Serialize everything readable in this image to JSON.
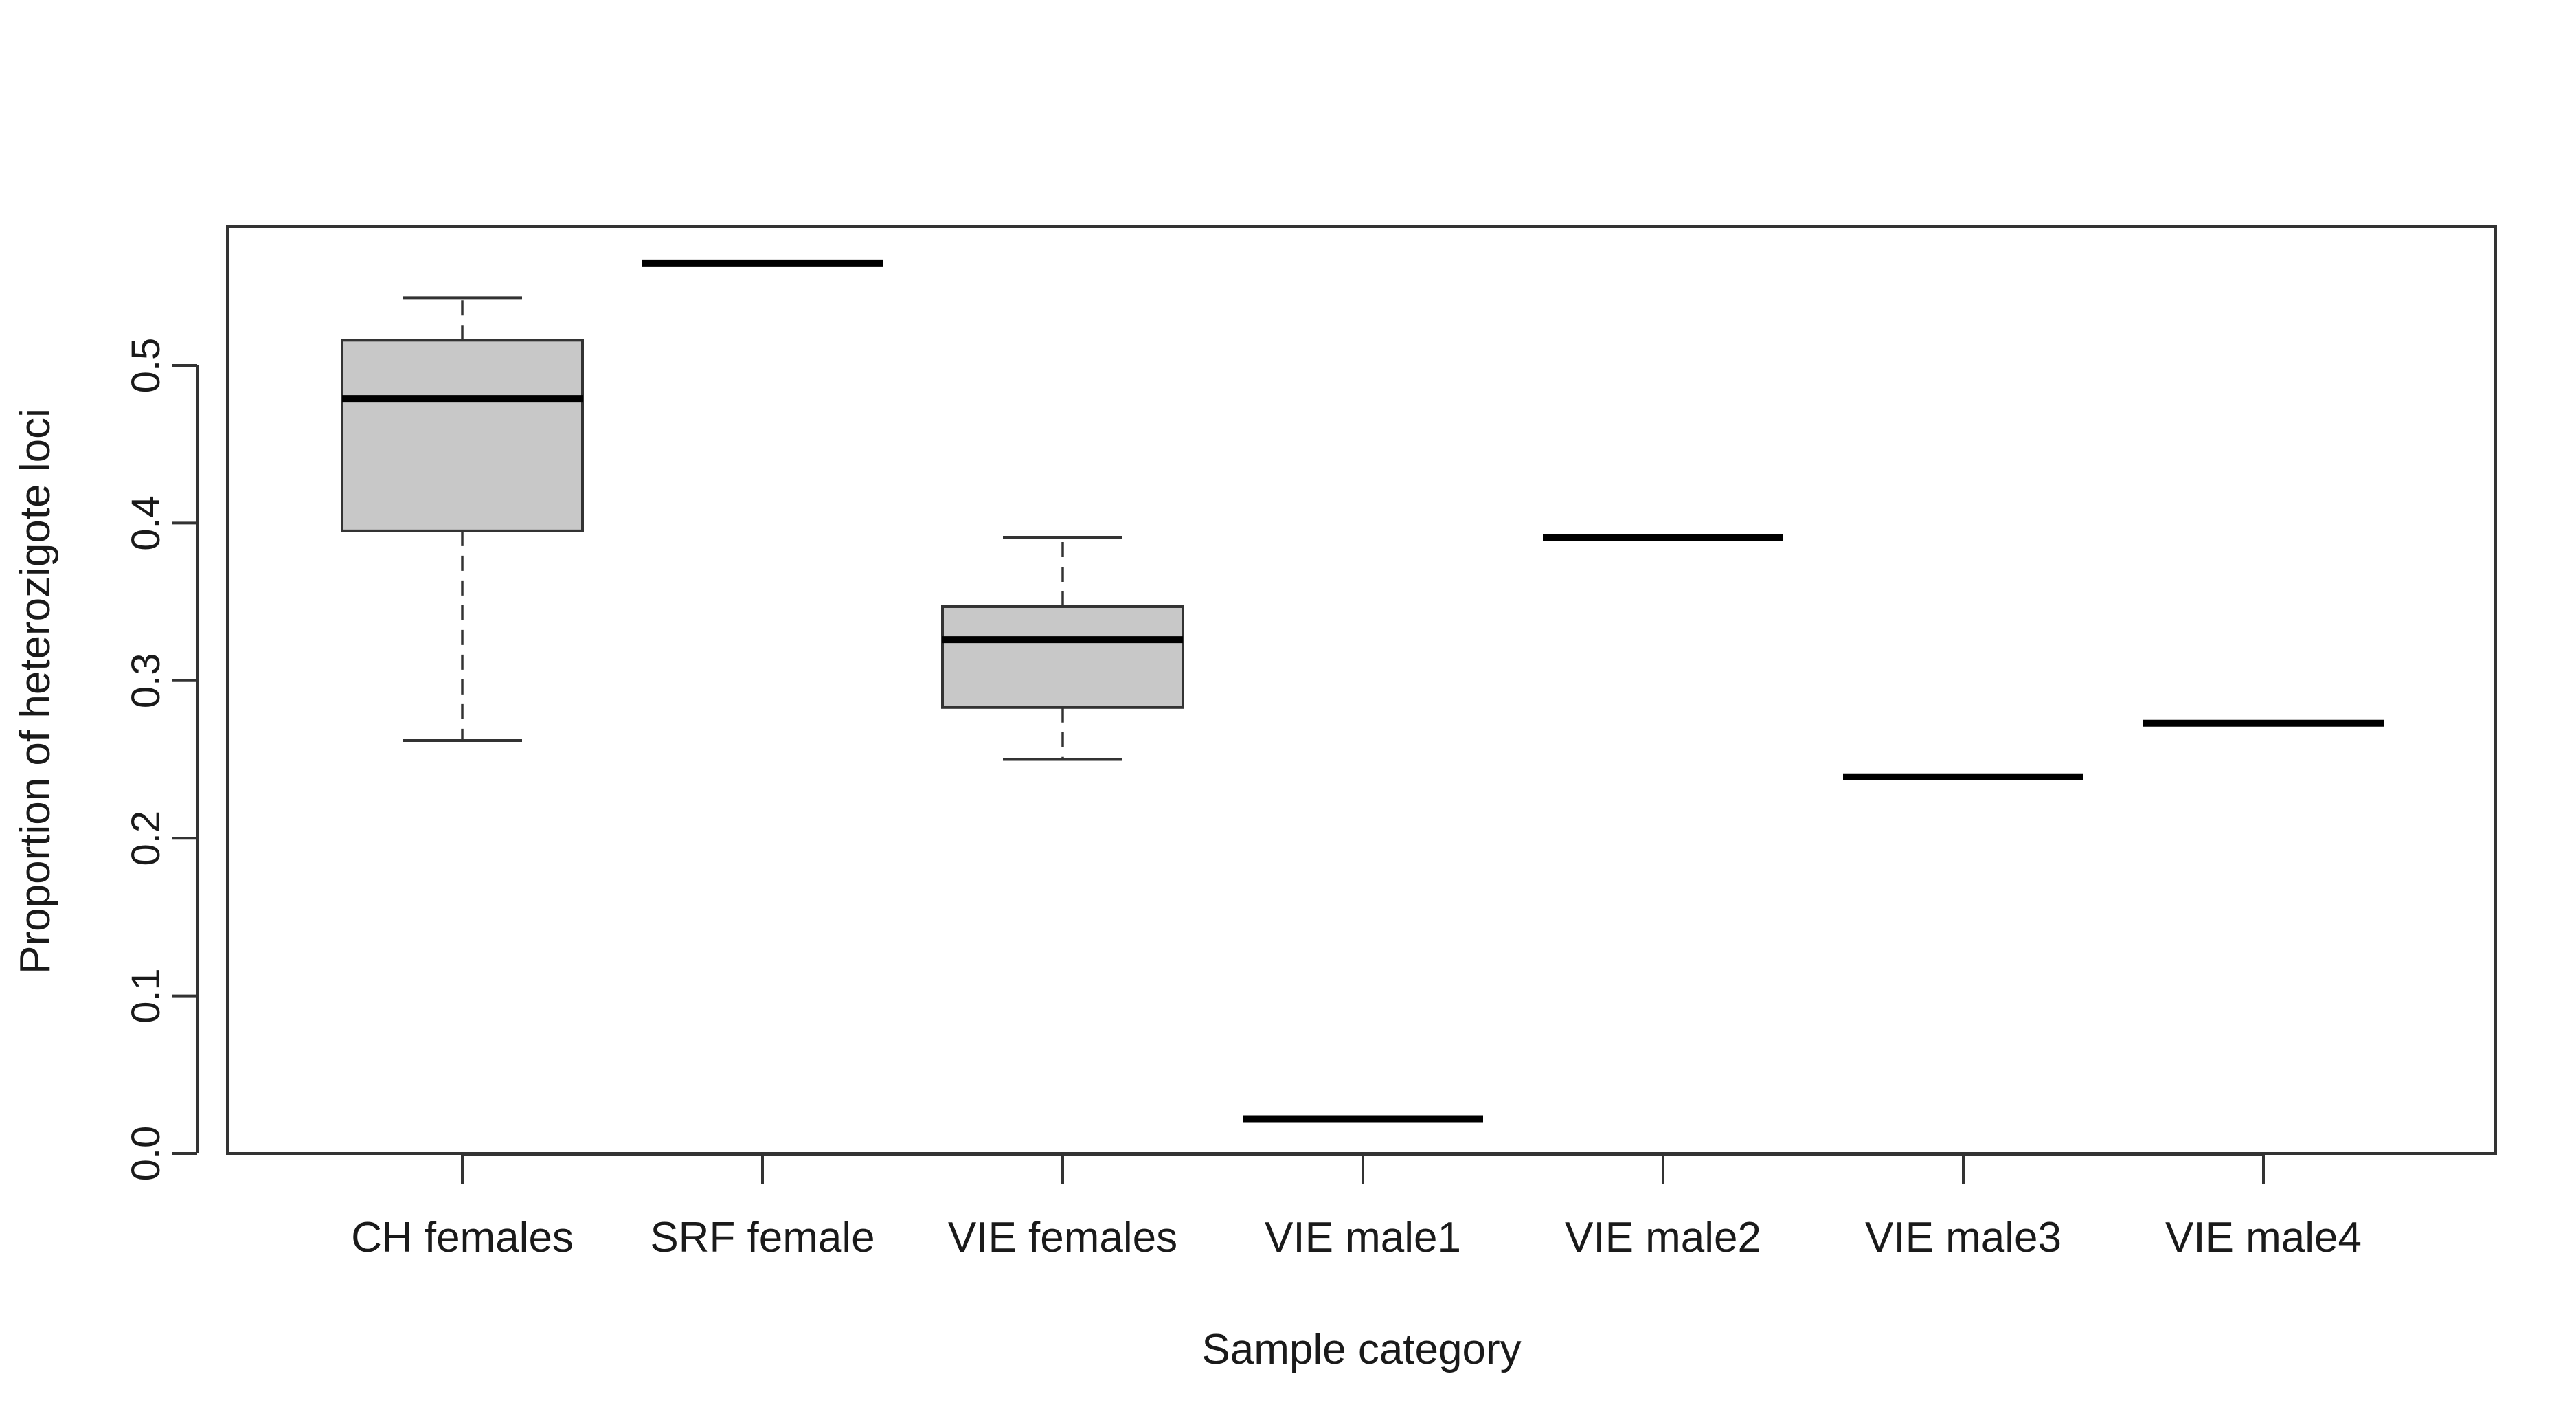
{
  "chart_data": {
    "type": "box",
    "title": "",
    "xlabel": "Sample category",
    "ylabel": "Proportion of heterozigote loci",
    "ylim": [
      0.0,
      0.59
    ],
    "yticks": [
      0.0,
      0.1,
      0.2,
      0.3,
      0.4,
      0.5
    ],
    "ytick_labels": [
      "0.0",
      "0.1",
      "0.2",
      "0.3",
      "0.4",
      "0.5"
    ],
    "grid": false,
    "legend": "none",
    "box_fill": "#c8c8c8",
    "line_color": "#000000",
    "categories": [
      "CH females",
      "SRF female",
      "VIE females",
      "VIE male1",
      "VIE male2",
      "VIE male3",
      "VIE male4"
    ],
    "boxes": [
      {
        "category": "CH females",
        "whisker_low": 0.262,
        "q1": 0.395,
        "median": 0.479,
        "q3": 0.516,
        "whisker_high": 0.543
      },
      {
        "category": "SRF female",
        "whisker_low": 0.565,
        "q1": 0.565,
        "median": 0.565,
        "q3": 0.565,
        "whisker_high": 0.565
      },
      {
        "category": "VIE females",
        "whisker_low": 0.25,
        "q1": 0.283,
        "median": 0.326,
        "q3": 0.347,
        "whisker_high": 0.391
      },
      {
        "category": "VIE male1",
        "whisker_low": 0.022,
        "q1": 0.022,
        "median": 0.022,
        "q3": 0.022,
        "whisker_high": 0.022
      },
      {
        "category": "VIE male2",
        "whisker_low": 0.391,
        "q1": 0.391,
        "median": 0.391,
        "q3": 0.391,
        "whisker_high": 0.391
      },
      {
        "category": "VIE male3",
        "whisker_low": 0.239,
        "q1": 0.239,
        "median": 0.239,
        "q3": 0.239,
        "whisker_high": 0.239
      },
      {
        "category": "VIE male4",
        "whisker_low": 0.273,
        "q1": 0.273,
        "median": 0.273,
        "q3": 0.273,
        "whisker_high": 0.273
      }
    ]
  }
}
